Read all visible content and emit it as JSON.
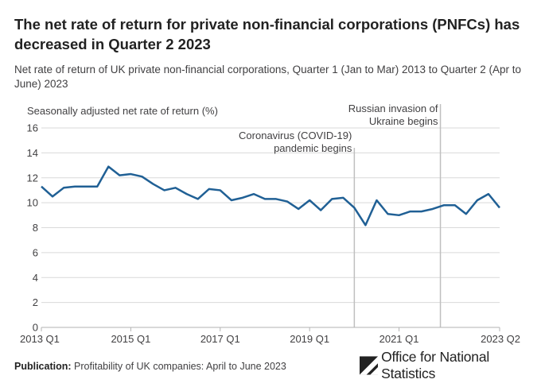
{
  "title": "The net rate of return for private non-financial corporations (PNFCs) has decreased in Quarter 2 2023",
  "subtitle": "Net rate of return of UK private non-financial corporations, Quarter 1 (Jan to Mar) 2013 to Quarter 2 (Apr to June) 2023",
  "footer": {
    "source_label": "Publication:",
    "source_text": "Profitability of UK companies: April to June 2023",
    "logo_text": "Office for National Statistics",
    "logo_icon": "ons-logo-icon"
  },
  "chart_data": {
    "type": "line",
    "ylabel": "Seasonally adjusted net rate of return (%)",
    "ylim": [
      0,
      16
    ],
    "yticks": [
      0,
      2,
      4,
      6,
      8,
      10,
      12,
      14,
      16
    ],
    "x_tick_labels": [
      "2013 Q1",
      "2015 Q1",
      "2017 Q1",
      "2019 Q1",
      "2021 Q1",
      "2023 Q2"
    ],
    "x_tick_index": [
      0,
      8,
      16,
      24,
      32,
      41
    ],
    "grid": "horizontal",
    "line_color": "#206095",
    "x": [
      "2013 Q1",
      "2013 Q2",
      "2013 Q3",
      "2013 Q4",
      "2014 Q1",
      "2014 Q2",
      "2014 Q3",
      "2014 Q4",
      "2015 Q1",
      "2015 Q2",
      "2015 Q3",
      "2015 Q4",
      "2016 Q1",
      "2016 Q2",
      "2016 Q3",
      "2016 Q4",
      "2017 Q1",
      "2017 Q2",
      "2017 Q3",
      "2017 Q4",
      "2018 Q1",
      "2018 Q2",
      "2018 Q3",
      "2018 Q4",
      "2019 Q1",
      "2019 Q2",
      "2019 Q3",
      "2019 Q4",
      "2020 Q1",
      "2020 Q2",
      "2020 Q3",
      "2020 Q4",
      "2021 Q1",
      "2021 Q2",
      "2021 Q3",
      "2021 Q4",
      "2022 Q1",
      "2022 Q2",
      "2022 Q3",
      "2022 Q4",
      "2023 Q1",
      "2023 Q2"
    ],
    "values": [
      11.3,
      10.5,
      11.2,
      11.3,
      11.3,
      11.3,
      12.9,
      12.2,
      12.3,
      12.1,
      11.5,
      11.0,
      11.2,
      10.7,
      10.3,
      11.1,
      11.0,
      10.2,
      10.4,
      10.7,
      10.3,
      10.3,
      10.1,
      9.5,
      10.2,
      9.4,
      10.3,
      10.4,
      9.6,
      8.2,
      10.2,
      9.1,
      9.0,
      9.3,
      9.3,
      9.5,
      9.8,
      9.8,
      9.1,
      10.2,
      10.7,
      9.6
    ],
    "annotations": [
      {
        "text_line1": "Coronavirus (COVID-19)",
        "text_line2": "pandemic begins",
        "at_index": 28
      },
      {
        "text_line1": "Russian invasion of",
        "text_line2": "Ukraine begins",
        "at_index": 35.7
      }
    ]
  }
}
